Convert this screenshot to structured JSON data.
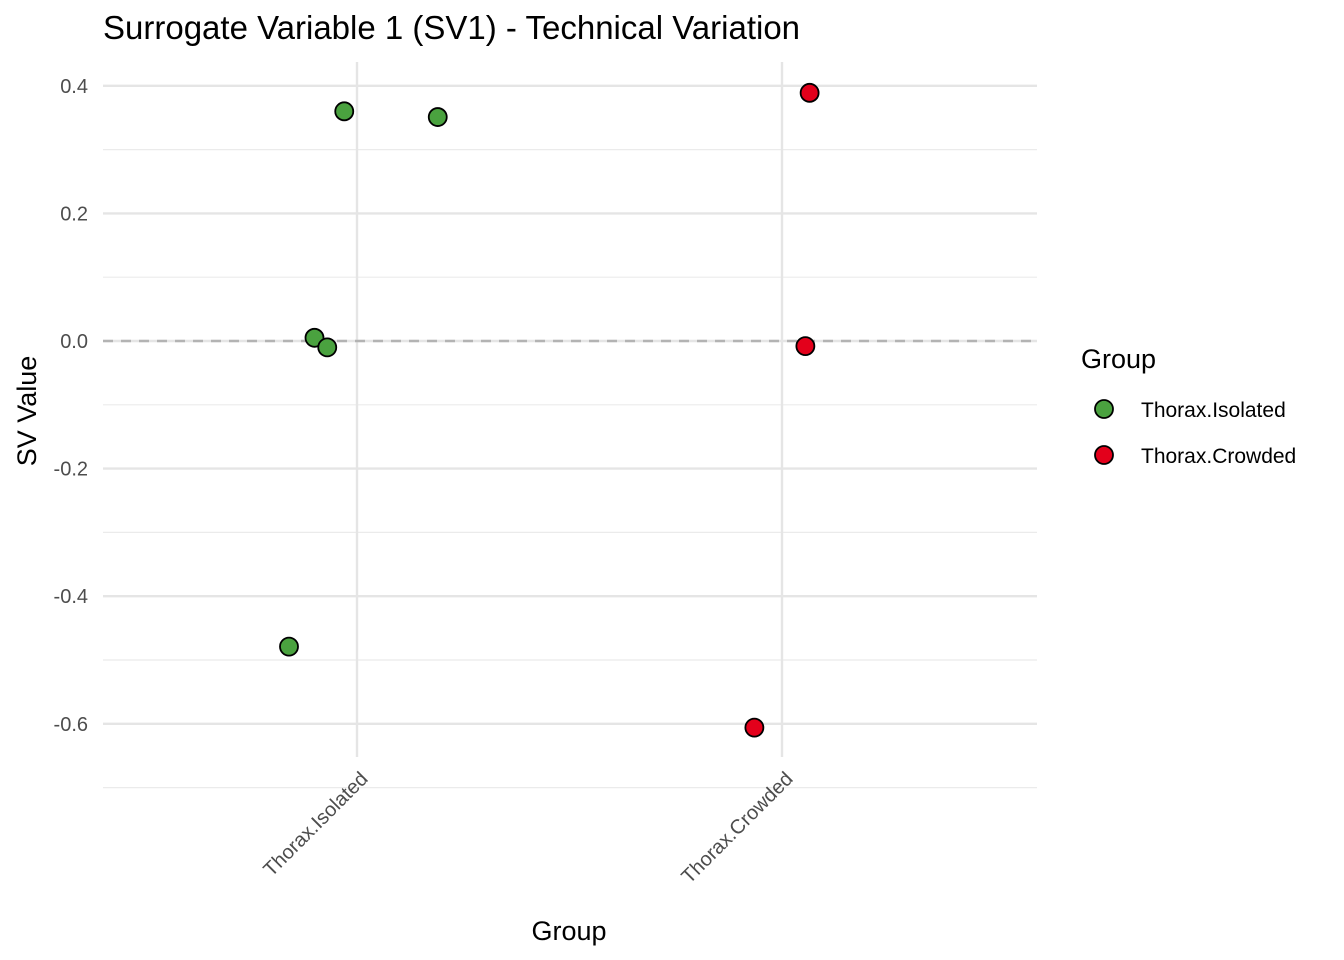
{
  "chart_data": {
    "type": "scatter",
    "title": "Surrogate Variable 1 (SV1) - Technical Variation",
    "xlabel": "Group",
    "ylabel": "SV Value",
    "categories": [
      "Thorax.Isolated",
      "Thorax.Crowded"
    ],
    "ylim": [
      -0.66,
      0.435
    ],
    "yticks": [
      0.4,
      0.2,
      0.0,
      -0.2,
      -0.4,
      -0.6
    ],
    "ytick_labels": [
      "0.4",
      "0.2",
      "0.0",
      "-0.2",
      "-0.4",
      "-0.6"
    ],
    "reference_line": 0.0,
    "grid": true,
    "legend": {
      "title": "Group",
      "position": "right",
      "entries": [
        "Thorax.Isolated",
        "Thorax.Crowded"
      ]
    },
    "series": [
      {
        "name": "Thorax.Isolated",
        "color": "#4aa23f",
        "points": [
          {
            "jitter": -0.03,
            "y": 0.36
          },
          {
            "jitter": 0.19,
            "y": 0.351
          },
          {
            "jitter": -0.1,
            "y": 0.005
          },
          {
            "jitter": -0.07,
            "y": -0.01
          },
          {
            "jitter": -0.16,
            "y": -0.479
          }
        ]
      },
      {
        "name": "Thorax.Crowded",
        "color": "#e3001b",
        "points": [
          {
            "jitter": 0.065,
            "y": 0.389
          },
          {
            "jitter": 0.055,
            "y": -0.008
          },
          {
            "jitter": -0.065,
            "y": -0.606
          }
        ]
      }
    ]
  }
}
